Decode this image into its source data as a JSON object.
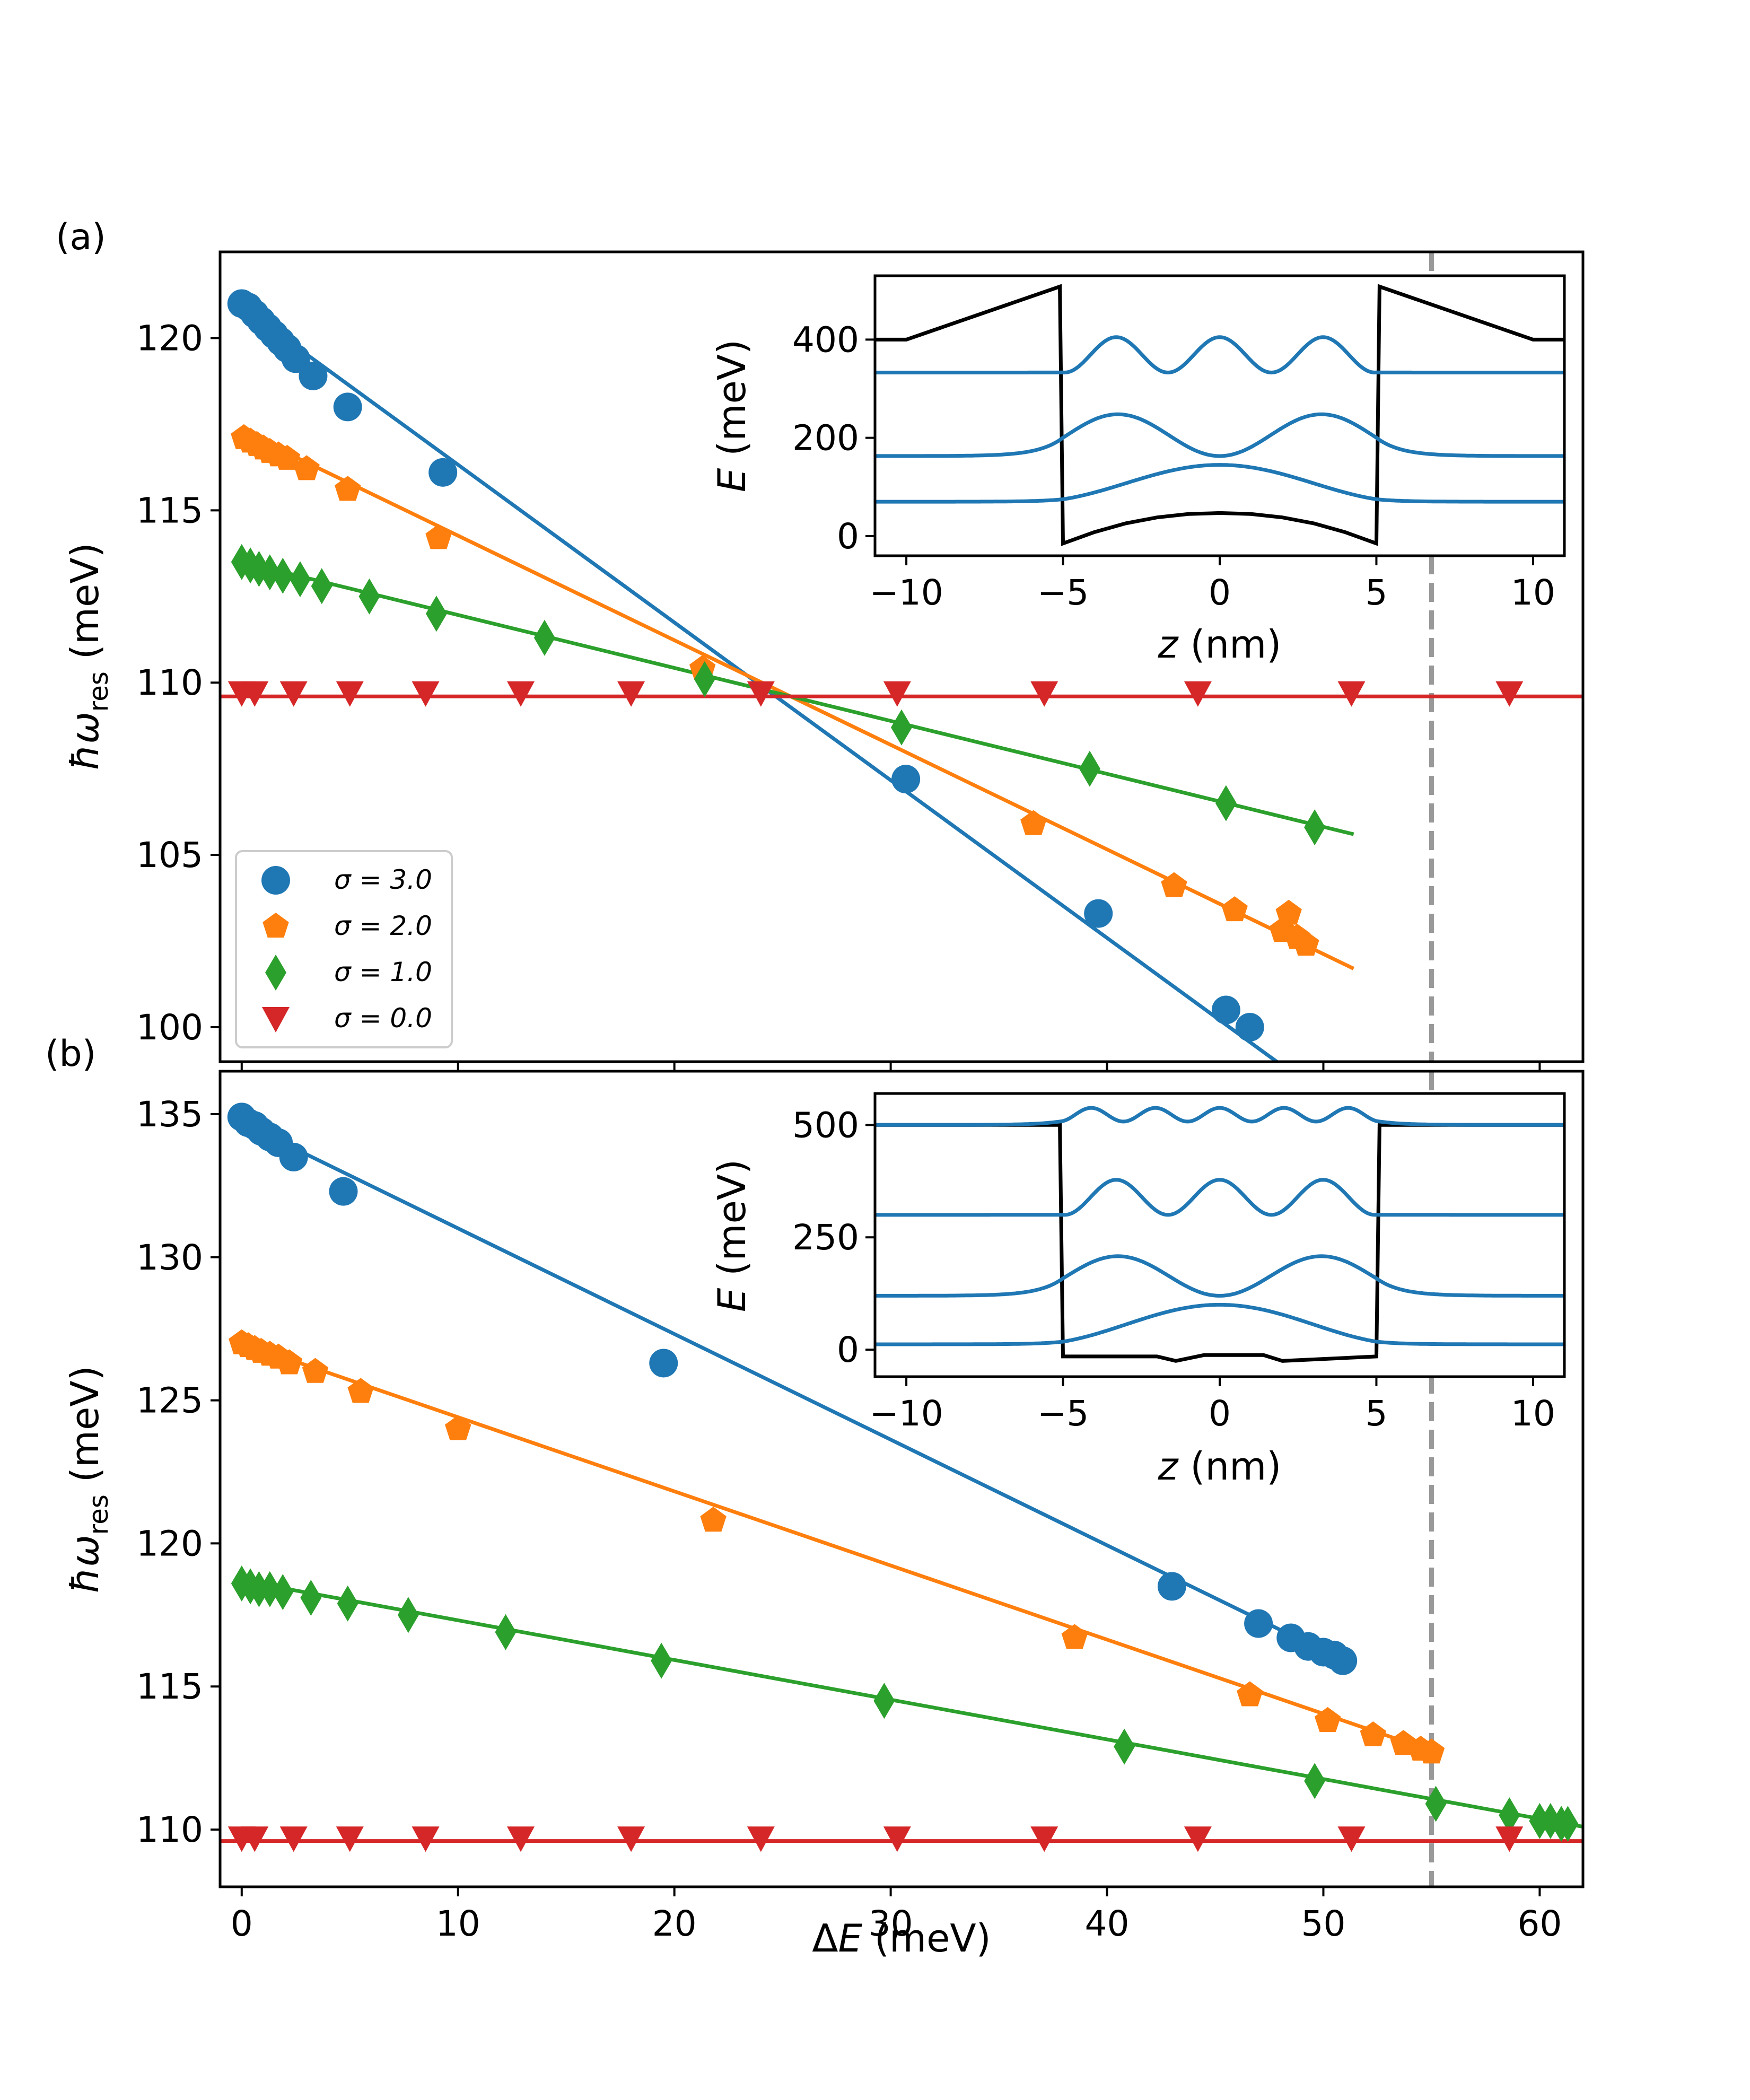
{
  "colors": {
    "s3": "#1f77b4",
    "s2": "#ff7f0e",
    "s1": "#2ca02c",
    "s0": "#d62728",
    "potential": "#000000",
    "vline": "#999999"
  },
  "chart_data": [
    {
      "id": "a",
      "panel_label": "(a)",
      "type": "scatter",
      "xlabel": "ΔE (meV)",
      "ylabel": "ħω_res (meV)",
      "xlim": [
        -1,
        62
      ],
      "ylim": [
        99,
        122.5
      ],
      "yticks": [
        100,
        105,
        110,
        115,
        120
      ],
      "xticks": [
        0,
        10,
        20,
        30,
        40,
        50,
        60
      ],
      "vline_x": 55,
      "legend": [
        "σ = 3.0",
        "σ = 2.0",
        "σ = 1.0",
        "σ = 0.0"
      ],
      "series": [
        {
          "name": "σ = 3.0",
          "key": "s3",
          "marker": "circle",
          "x": [
            0,
            0.3,
            0.6,
            0.9,
            1.2,
            1.5,
            1.8,
            2.1,
            2.5,
            3.3,
            4.9,
            9.3,
            30.7,
            39.6,
            45.5,
            46.6
          ],
          "y": [
            121.0,
            120.9,
            120.7,
            120.5,
            120.3,
            120.1,
            119.9,
            119.7,
            119.4,
            118.9,
            118.0,
            116.1,
            107.2,
            103.3,
            100.5,
            100.0
          ],
          "fit": [
            [
              0,
              120.9
            ],
            [
              48.5,
              98.7
            ]
          ]
        },
        {
          "name": "σ = 2.0",
          "key": "s2",
          "marker": "pentagon",
          "x": [
            0.1,
            0.4,
            0.7,
            1.0,
            1.3,
            1.7,
            2.1,
            3.0,
            4.9,
            9.1,
            21.3,
            36.6,
            43.1,
            45.9,
            48.1,
            48.4,
            48.8,
            49.2
          ],
          "y": [
            117.1,
            117.0,
            116.9,
            116.8,
            116.7,
            116.6,
            116.5,
            116.2,
            115.6,
            114.2,
            110.4,
            105.9,
            104.1,
            103.4,
            102.8,
            103.3,
            102.6,
            102.4
          ],
          "fit": [
            [
              0,
              117.3
            ],
            [
              51.4,
              101.7
            ]
          ]
        },
        {
          "name": "σ = 1.0",
          "key": "s1",
          "marker": "diamond",
          "x": [
            0,
            0.4,
            0.8,
            1.3,
            1.9,
            2.7,
            3.7,
            5.9,
            9.0,
            14.0,
            21.4,
            30.5,
            39.2,
            45.5,
            49.6
          ],
          "y": [
            113.5,
            113.4,
            113.3,
            113.2,
            113.1,
            113.0,
            112.8,
            112.5,
            112.0,
            111.3,
            110.1,
            108.7,
            107.5,
            106.5,
            105.8
          ],
          "fit": [
            [
              0,
              113.5
            ],
            [
              51.4,
              105.6
            ]
          ]
        },
        {
          "name": "σ = 0.0",
          "key": "s0",
          "marker": "triangle-down",
          "x": [
            0,
            0.6,
            2.4,
            5.0,
            8.5,
            12.9,
            18.0,
            24.0,
            30.3,
            37.1,
            44.2,
            51.3,
            58.6
          ],
          "y": [
            109.7,
            109.7,
            109.7,
            109.7,
            109.7,
            109.7,
            109.7,
            109.7,
            109.7,
            109.7,
            109.7,
            109.7,
            109.7
          ],
          "fit": [
            [
              -1,
              109.6
            ],
            [
              62,
              109.6
            ]
          ]
        }
      ],
      "inset": {
        "xlabel": "z (nm)",
        "ylabel": "E (meV)",
        "xlim": [
          -11,
          11
        ],
        "ylim": [
          -40,
          530
        ],
        "xticks": [
          -10,
          -5,
          0,
          5,
          10
        ],
        "yticks": [
          0,
          200,
          400
        ],
        "potential": {
          "x": [
            -11,
            -10,
            -5.1,
            -5,
            -4,
            -3,
            -2,
            -1,
            0,
            1,
            2,
            3,
            4,
            5,
            5.1,
            10,
            11
          ],
          "y": [
            400,
            400,
            508,
            -15,
            8,
            26,
            38,
            45,
            47,
            45,
            38,
            26,
            8,
            -15,
            508,
            400,
            400
          ]
        },
        "states": [
          {
            "base": 70,
            "amp": 75,
            "nodes": 0
          },
          {
            "base": 163,
            "amp": 85,
            "nodes": 1
          },
          {
            "base": 333,
            "amp": 72,
            "nodes": 2
          }
        ]
      }
    },
    {
      "id": "b",
      "panel_label": "(b)",
      "type": "scatter",
      "xlabel": "ΔE (meV)",
      "ylabel": "ħω_res (meV)",
      "xlim": [
        -1,
        62
      ],
      "ylim": [
        108,
        136.5
      ],
      "yticks": [
        110,
        115,
        120,
        125,
        130,
        135
      ],
      "xticks": [
        0,
        10,
        20,
        30,
        40,
        50,
        60
      ],
      "vline_x": 55,
      "series": [
        {
          "name": "σ = 3.0",
          "key": "s3",
          "marker": "circle",
          "x": [
            0,
            0.3,
            0.6,
            0.9,
            1.3,
            1.7,
            2.4,
            4.7,
            19.5,
            43.0,
            47.0,
            48.5,
            49.3,
            50.0,
            50.5,
            50.9
          ],
          "y": [
            134.9,
            134.7,
            134.6,
            134.4,
            134.2,
            134.0,
            133.5,
            132.3,
            126.3,
            118.5,
            117.2,
            116.7,
            116.4,
            116.2,
            116.1,
            115.9
          ],
          "fit": [
            [
              0,
              134.7
            ],
            [
              51.2,
              115.8
            ]
          ]
        },
        {
          "name": "σ = 2.0",
          "key": "s2",
          "marker": "pentagon",
          "x": [
            0,
            0.3,
            0.6,
            0.9,
            1.3,
            1.7,
            2.2,
            3.4,
            5.5,
            10.0,
            21.8,
            38.5,
            46.6,
            50.2,
            52.3,
            53.7,
            54.5,
            55.0
          ],
          "y": [
            127.0,
            126.9,
            126.8,
            126.7,
            126.6,
            126.5,
            126.3,
            126.0,
            125.3,
            124.0,
            120.8,
            116.7,
            114.7,
            113.8,
            113.3,
            113.0,
            112.8,
            112.7
          ],
          "fit": [
            [
              0,
              127.0
            ],
            [
              55.2,
              112.7
            ]
          ]
        },
        {
          "name": "σ = 1.0",
          "key": "s1",
          "marker": "diamond",
          "x": [
            0,
            0.4,
            0.8,
            1.3,
            1.9,
            3.2,
            4.9,
            7.7,
            12.2,
            19.4,
            29.7,
            40.8,
            49.6,
            55.2,
            58.6,
            60.0,
            60.5,
            61.0,
            61.3
          ],
          "y": [
            118.6,
            118.5,
            118.4,
            118.4,
            118.3,
            118.1,
            117.9,
            117.5,
            116.9,
            115.9,
            114.5,
            112.9,
            111.7,
            110.9,
            110.5,
            110.3,
            110.3,
            110.2,
            110.2
          ],
          "fit": [
            [
              0,
              118.7
            ],
            [
              62,
              110.1
            ]
          ]
        },
        {
          "name": "σ = 0.0",
          "key": "s0",
          "marker": "triangle-down",
          "x": [
            0,
            0.6,
            2.4,
            5.0,
            8.5,
            12.9,
            18.0,
            24.0,
            30.3,
            37.1,
            44.2,
            51.3,
            58.6
          ],
          "y": [
            109.7,
            109.7,
            109.7,
            109.7,
            109.7,
            109.7,
            109.7,
            109.7,
            109.7,
            109.7,
            109.7,
            109.7,
            109.7
          ],
          "fit": [
            [
              -1,
              109.6
            ],
            [
              62,
              109.6
            ]
          ]
        }
      ],
      "inset": {
        "xlabel": "z (nm)",
        "ylabel": "E (meV)",
        "xlim": [
          -11,
          11
        ],
        "ylim": [
          -60,
          570
        ],
        "xticks": [
          -10,
          -5,
          0,
          5,
          10
        ],
        "yticks": [
          0,
          250,
          500
        ],
        "potential": {
          "x": [
            -11,
            -5.1,
            -5,
            -2,
            -1.4,
            -0.5,
            0,
            0.5,
            1.4,
            2,
            5,
            5.1,
            11
          ],
          "y": [
            500,
            500,
            -15,
            -15,
            -25,
            -12,
            -12,
            -12,
            -12,
            -25,
            -15,
            500,
            500
          ]
        },
        "states": [
          {
            "base": 12,
            "amp": 88,
            "nodes": 0
          },
          {
            "base": 120,
            "amp": 88,
            "nodes": 1
          },
          {
            "base": 300,
            "amp": 78,
            "nodes": 2
          },
          {
            "base": 500,
            "amp": 38,
            "nodes": 4
          }
        ]
      }
    }
  ]
}
